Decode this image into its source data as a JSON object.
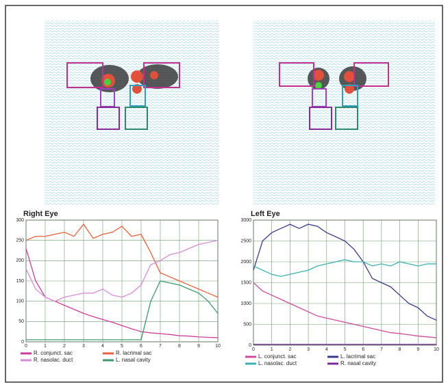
{
  "chart_data": [
    {
      "type": "line",
      "title": "Right Eye",
      "x": [
        0,
        0.5,
        1,
        1.5,
        2,
        2.5,
        3,
        3.5,
        4,
        4.5,
        5,
        5.5,
        6,
        6.5,
        7,
        7.5,
        8,
        8.5,
        9,
        9.5,
        10
      ],
      "xlim": [
        0,
        10
      ],
      "xticks": [
        0,
        1,
        2,
        3,
        4,
        5,
        6,
        7,
        8,
        9,
        10
      ],
      "ylim": [
        0,
        300
      ],
      "yticks": [
        0,
        50,
        100,
        150,
        200,
        250,
        300
      ],
      "grid": true,
      "series": [
        {
          "name": "R. conjunct. sac",
          "color": "#d03a9a",
          "values": [
            230,
            150,
            110,
            100,
            90,
            80,
            70,
            62,
            55,
            48,
            40,
            32,
            25,
            22,
            20,
            18,
            15,
            14,
            12,
            11,
            10
          ]
        },
        {
          "name": "R. lacrimal sac",
          "color": "#e8603c",
          "values": [
            250,
            260,
            260,
            265,
            270,
            260,
            290,
            255,
            265,
            270,
            285,
            260,
            265,
            220,
            170,
            160,
            150,
            140,
            130,
            120,
            110
          ]
        },
        {
          "name": "R. nasolac. duct",
          "color": "#d88ad8",
          "values": [
            180,
            130,
            110,
            100,
            110,
            115,
            120,
            120,
            130,
            115,
            110,
            120,
            140,
            190,
            200,
            215,
            220,
            230,
            240,
            245,
            250
          ]
        },
        {
          "name": "L. nasal cavity",
          "color": "#3a9a6a",
          "values": [
            5,
            5,
            5,
            5,
            5,
            5,
            5,
            5,
            5,
            5,
            5,
            5,
            5,
            100,
            150,
            145,
            140,
            130,
            120,
            100,
            70
          ]
        }
      ]
    },
    {
      "type": "line",
      "title": "Left Eye",
      "x": [
        0,
        0.5,
        1,
        1.5,
        2,
        2.5,
        3,
        3.5,
        4,
        4.5,
        5,
        5.5,
        6,
        6.5,
        7,
        7.5,
        8,
        8.5,
        9,
        9.5,
        10
      ],
      "xlim": [
        0,
        10
      ],
      "xticks": [
        0,
        1,
        2,
        3,
        4,
        5,
        6,
        7,
        8,
        9,
        10
      ],
      "ylim": [
        0,
        3000
      ],
      "yticks": [
        0,
        500,
        1000,
        1500,
        2000,
        2500,
        3000
      ],
      "grid": true,
      "series": [
        {
          "name": "L. conjunct. sac",
          "color": "#d04a9a",
          "values": [
            1500,
            1300,
            1200,
            1100,
            1000,
            900,
            800,
            700,
            650,
            600,
            550,
            500,
            450,
            400,
            350,
            300,
            280,
            250,
            220,
            200,
            180
          ]
        },
        {
          "name": "L. lacrimal sac",
          "color": "#3a3a8a",
          "values": [
            1800,
            2500,
            2700,
            2800,
            2900,
            2800,
            2900,
            2850,
            2700,
            2600,
            2500,
            2300,
            2000,
            1600,
            1500,
            1400,
            1200,
            1000,
            900,
            700,
            600
          ]
        },
        {
          "name": "L. nasolac. duct",
          "color": "#3ab0b0",
          "values": [
            1900,
            1800,
            1700,
            1650,
            1700,
            1750,
            1800,
            1900,
            1950,
            2000,
            2050,
            2000,
            2000,
            1900,
            1950,
            1900,
            2000,
            1950,
            1900,
            1950,
            1950
          ]
        },
        {
          "name": "R. nasal cavity",
          "color": "#7a2a9a",
          "values": [
            20,
            20,
            20,
            20,
            20,
            20,
            20,
            20,
            20,
            20,
            20,
            20,
            20,
            20,
            20,
            20,
            20,
            20,
            20,
            20,
            20
          ]
        }
      ]
    }
  ]
}
